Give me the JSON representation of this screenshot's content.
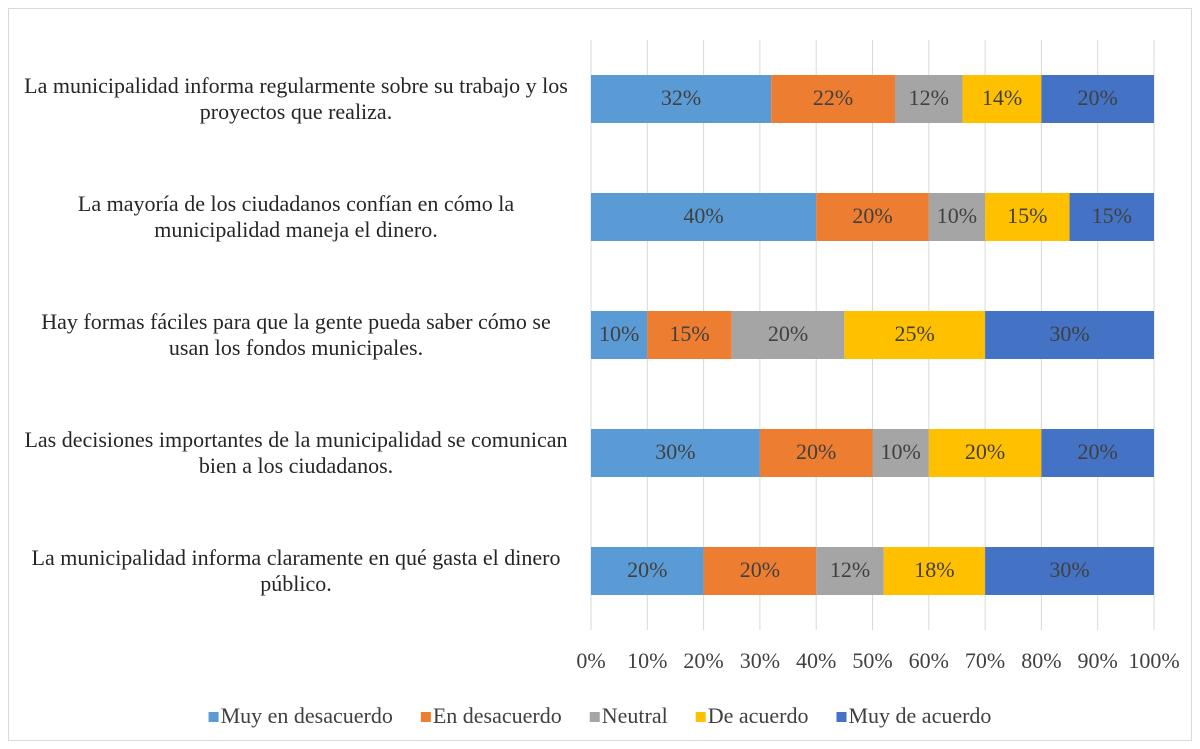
{
  "chart_data": {
    "type": "stacked-barh",
    "categories": [
      "La municipalidad informa regularmente sobre su trabajo y los proyectos que realiza.",
      "La mayoría de los ciudadanos confían en cómo la municipalidad maneja el dinero.",
      "Hay formas fáciles para que la gente pueda saber cómo se usan los fondos municipales.",
      "Las decisiones importantes de la municipalidad se comunican bien a los ciudadanos.",
      "La municipalidad informa claramente en qué gasta el dinero público."
    ],
    "series": [
      {
        "name": "Muy en desacuerdo",
        "color": "#5b9bd5",
        "values": [
          32,
          40,
          10,
          30,
          20
        ],
        "value_labels": [
          "32%",
          "40%",
          "10%",
          "30%",
          "20%"
        ]
      },
      {
        "name": "En desacuerdo",
        "color": "#ed7d31",
        "values": [
          22,
          20,
          15,
          20,
          20
        ],
        "value_labels": [
          "22%",
          "20%",
          "15%",
          "20%",
          "20%"
        ]
      },
      {
        "name": "Neutral",
        "color": "#a5a5a5",
        "values": [
          12,
          10,
          20,
          10,
          12
        ],
        "value_labels": [
          "12%",
          "10%",
          "20%",
          "10%",
          "12%"
        ]
      },
      {
        "name": "De acuerdo",
        "color": "#ffc000",
        "values": [
          14,
          15,
          25,
          20,
          18
        ],
        "value_labels": [
          "14%",
          "15%",
          "25%",
          "20%",
          "18%"
        ]
      },
      {
        "name": "Muy de acuerdo",
        "color": "#4472c4",
        "values": [
          20,
          15,
          30,
          20,
          30
        ],
        "value_labels": [
          "20%",
          "15%",
          "30%",
          "20%",
          "30%"
        ]
      }
    ],
    "xlim": [
      0,
      100
    ],
    "xticks": [
      {
        "value": 0,
        "label": "0%"
      },
      {
        "value": 10,
        "label": "10%"
      },
      {
        "value": 20,
        "label": "20%"
      },
      {
        "value": 30,
        "label": "30%"
      },
      {
        "value": 40,
        "label": "40%"
      },
      {
        "value": 50,
        "label": "50%"
      },
      {
        "value": 60,
        "label": "60%"
      },
      {
        "value": 70,
        "label": "70%"
      },
      {
        "value": 80,
        "label": "80%"
      },
      {
        "value": 90,
        "label": "90%"
      },
      {
        "value": 100,
        "label": "100%"
      }
    ],
    "grid": true,
    "legend": "bottom"
  }
}
